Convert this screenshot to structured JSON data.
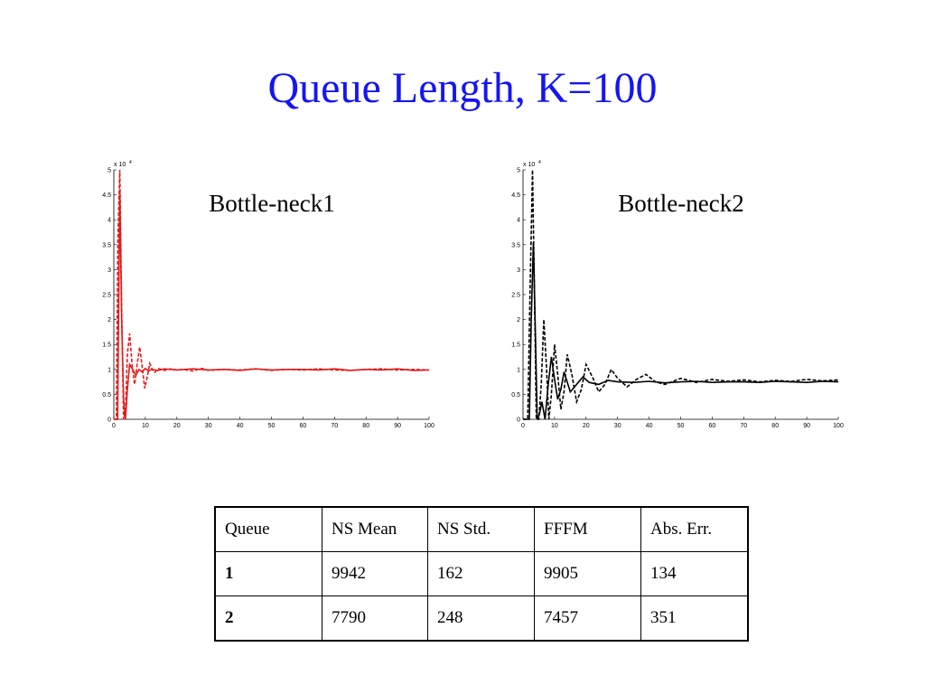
{
  "slide": {
    "title": "Queue Length, K=100"
  },
  "chart_data": [
    {
      "type": "line",
      "label": "Bottle-neck1",
      "scale_note": "x 10",
      "scale_exp": "4",
      "xlim": [
        0,
        100
      ],
      "ylim": [
        0,
        5
      ],
      "xticks": [
        0,
        10,
        20,
        30,
        40,
        50,
        60,
        70,
        80,
        90,
        100
      ],
      "yticks": [
        "0",
        "0.5",
        "1",
        "1.5",
        "2",
        "2.5",
        "3",
        "3.5",
        "4",
        "4.5",
        "5"
      ],
      "color": "#e41a1a",
      "series": [
        {
          "style": "dashed",
          "x": [
            0,
            0.8,
            1.3,
            1.9,
            2.5,
            3.1,
            3.7,
            4.3,
            5,
            5.8,
            6.6,
            7.4,
            8.2,
            9,
            9.8,
            10.6,
            11.4,
            12.2,
            13,
            14,
            15,
            16,
            18,
            20,
            22,
            25,
            28,
            30,
            35,
            40,
            45,
            50,
            55,
            60,
            65,
            70,
            75,
            80,
            85,
            90,
            95,
            100
          ],
          "y": [
            0,
            0,
            3.6,
            5.0,
            2.2,
            0,
            0.15,
            1.3,
            1.72,
            1.1,
            0.7,
            1.1,
            1.45,
            1.05,
            0.62,
            0.85,
            1.12,
            1.0,
            0.94,
            1.02,
            1.0,
            0.98,
            1.01,
            0.99,
            1.0,
            0.97,
            1.02,
            0.98,
            1.0,
            0.99,
            1.01,
            0.98,
            1.0,
            0.99,
            1.01,
            0.99,
            0.98,
            1.0,
            1.01,
            0.99,
            1.0,
            0.99
          ]
        },
        {
          "style": "solid",
          "x": [
            0,
            1.2,
            1.9,
            2.5,
            3.1,
            3.7,
            4.3,
            5,
            6,
            7,
            8,
            9,
            10,
            11,
            12,
            14,
            16,
            18,
            20,
            25,
            30,
            35,
            40,
            45,
            50,
            55,
            60,
            65,
            70,
            75,
            80,
            85,
            90,
            95,
            100
          ],
          "y": [
            0,
            0,
            4.6,
            2.0,
            0.4,
            0,
            0.6,
            1.1,
            1.0,
            0.88,
            1.0,
            0.95,
            1.02,
            0.97,
            1.0,
            0.98,
            1.01,
            1.0,
            0.99,
            1.01,
            0.99,
            1.0,
            0.98,
            1.01,
            0.99,
            1.0,
            1.0,
            0.99,
            1.01,
            0.98,
            1.0,
            0.99,
            1.01,
            0.98,
            0.99
          ]
        }
      ]
    },
    {
      "type": "line",
      "label": "Bottle-neck2",
      "scale_note": "x 10",
      "scale_exp": "4",
      "xlim": [
        0,
        100
      ],
      "ylim": [
        0,
        5
      ],
      "xticks": [
        0,
        10,
        20,
        30,
        40,
        50,
        60,
        70,
        80,
        90,
        100
      ],
      "yticks": [
        "0",
        "0.5",
        "1",
        "1.5",
        "2",
        "2.5",
        "3",
        "3.5",
        "4",
        "4.5",
        "5"
      ],
      "color": "#000000",
      "series": [
        {
          "style": "dashed",
          "x": [
            0,
            1.5,
            2.2,
            3.0,
            3.6,
            4.2,
            5,
            5.8,
            6.6,
            7.4,
            8.2,
            9,
            10,
            11,
            12,
            13,
            14,
            15.5,
            17,
            18.5,
            20,
            22,
            24,
            26,
            28,
            30,
            33,
            36,
            39,
            42,
            45,
            50,
            55,
            60,
            65,
            70,
            75,
            80,
            85,
            90,
            95,
            100
          ],
          "y": [
            0,
            0,
            2.5,
            5.0,
            2.6,
            0,
            0,
            0.7,
            2.0,
            1.1,
            0,
            0.5,
            1.5,
            0.9,
            0.2,
            0.55,
            1.3,
            0.9,
            0.35,
            0.6,
            1.1,
            0.85,
            0.55,
            0.7,
            1.0,
            0.82,
            0.65,
            0.8,
            0.9,
            0.75,
            0.7,
            0.82,
            0.74,
            0.8,
            0.76,
            0.79,
            0.75,
            0.78,
            0.76,
            0.8,
            0.77,
            0.79
          ]
        },
        {
          "style": "solid",
          "x": [
            0,
            2.0,
            2.6,
            3.3,
            3.9,
            4.5,
            5.2,
            6,
            7,
            8,
            9,
            10,
            11,
            12,
            13,
            14,
            15,
            17,
            19,
            21,
            24,
            27,
            30,
            35,
            40,
            45,
            50,
            55,
            60,
            65,
            70,
            75,
            80,
            85,
            90,
            95,
            100
          ],
          "y": [
            0,
            0,
            2.0,
            3.55,
            1.8,
            0,
            0.1,
            0.35,
            0,
            0.7,
            1.25,
            0.8,
            0.4,
            0.6,
            0.95,
            0.75,
            0.55,
            0.7,
            0.85,
            0.74,
            0.7,
            0.78,
            0.75,
            0.74,
            0.76,
            0.73,
            0.75,
            0.76,
            0.74,
            0.75,
            0.75,
            0.74,
            0.76,
            0.75,
            0.74,
            0.76,
            0.75
          ]
        }
      ]
    }
  ],
  "table": {
    "headers": [
      "Queue",
      "NS Mean",
      "NS Std.",
      "FFFM",
      "Abs. Err."
    ],
    "rows": [
      [
        "1",
        "9942",
        "162",
        "9905",
        "134"
      ],
      [
        "2",
        "7790",
        "248",
        "7457",
        "351"
      ]
    ]
  }
}
